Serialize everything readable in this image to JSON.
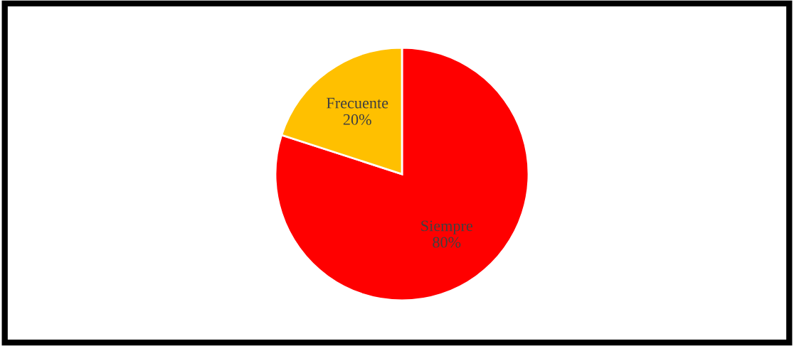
{
  "chart_data": {
    "type": "pie",
    "categories": [
      "Siempre",
      "Frecuente"
    ],
    "values": [
      80,
      20
    ],
    "value_labels": [
      "80%",
      "20%"
    ],
    "colors": [
      "#ff0000",
      "#ffc000"
    ],
    "legend": false
  }
}
